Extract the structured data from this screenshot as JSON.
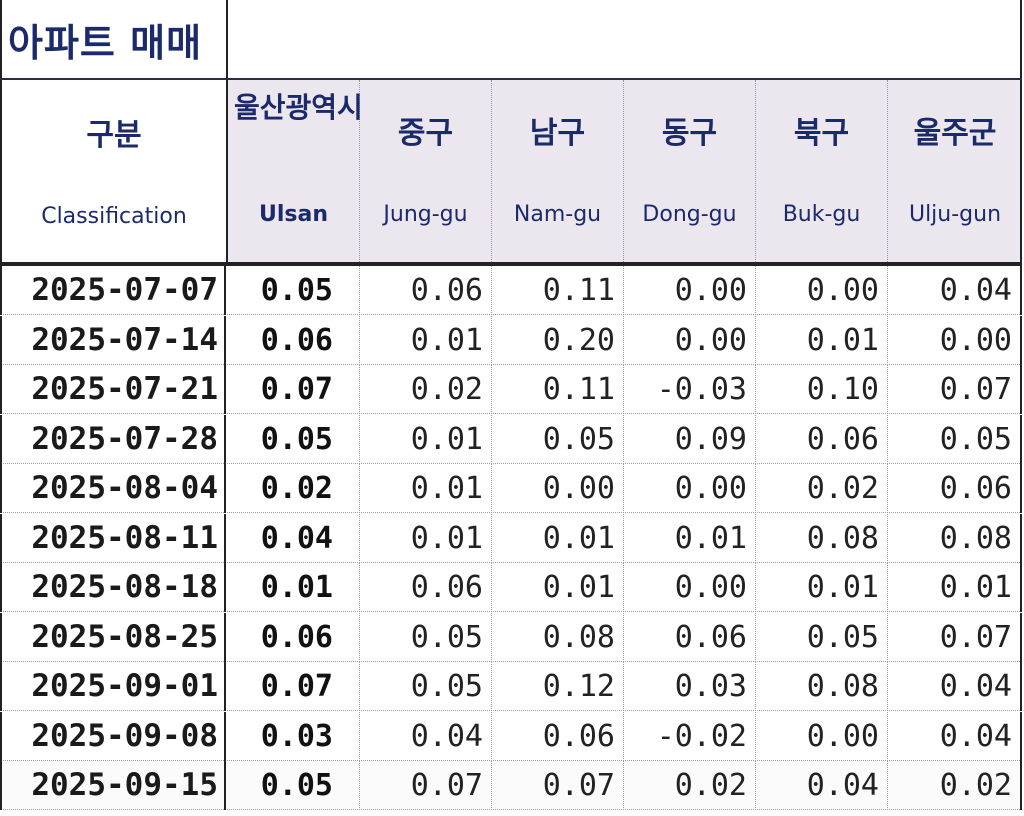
{
  "title": "아파트 매매",
  "header": {
    "classification_ko": "구분",
    "classification_en": "Classification",
    "columns": [
      {
        "ko": "울산광역시",
        "en": "Ulsan"
      },
      {
        "ko": "중구",
        "en": "Jung-gu"
      },
      {
        "ko": "남구",
        "en": "Nam-gu"
      },
      {
        "ko": "동구",
        "en": "Dong-gu"
      },
      {
        "ko": "북구",
        "en": "Buk-gu"
      },
      {
        "ko": "울주군",
        "en": "Ulju-gun"
      }
    ]
  },
  "rows": [
    {
      "date": "2025-07-07",
      "values": [
        "0.05",
        "0.06",
        "0.11",
        "0.00",
        "0.00",
        "0.04"
      ]
    },
    {
      "date": "2025-07-14",
      "values": [
        "0.06",
        "0.01",
        "0.20",
        "0.00",
        "0.01",
        "0.00"
      ]
    },
    {
      "date": "2025-07-21",
      "values": [
        "0.07",
        "0.02",
        "0.11",
        "-0.03",
        "0.10",
        "0.07"
      ]
    },
    {
      "date": "2025-07-28",
      "values": [
        "0.05",
        "0.01",
        "0.05",
        "0.09",
        "0.06",
        "0.05"
      ]
    },
    {
      "date": "2025-08-04",
      "values": [
        "0.02",
        "0.01",
        "0.00",
        "0.00",
        "0.02",
        "0.06"
      ]
    },
    {
      "date": "2025-08-11",
      "values": [
        "0.04",
        "0.01",
        "0.01",
        "0.01",
        "0.08",
        "0.08"
      ]
    },
    {
      "date": "2025-08-18",
      "values": [
        "0.01",
        "0.06",
        "0.01",
        "0.00",
        "0.01",
        "0.01"
      ]
    },
    {
      "date": "2025-08-25",
      "values": [
        "0.06",
        "0.05",
        "0.08",
        "0.06",
        "0.05",
        "0.07"
      ]
    },
    {
      "date": "2025-09-01",
      "values": [
        "0.07",
        "0.05",
        "0.12",
        "0.03",
        "0.08",
        "0.04"
      ]
    },
    {
      "date": "2025-09-08",
      "values": [
        "0.03",
        "0.04",
        "0.06",
        "-0.02",
        "0.00",
        "0.04"
      ]
    },
    {
      "date": "2025-09-15",
      "values": [
        "0.05",
        "0.07",
        "0.07",
        "0.02",
        "0.04",
        "0.02"
      ]
    }
  ]
}
